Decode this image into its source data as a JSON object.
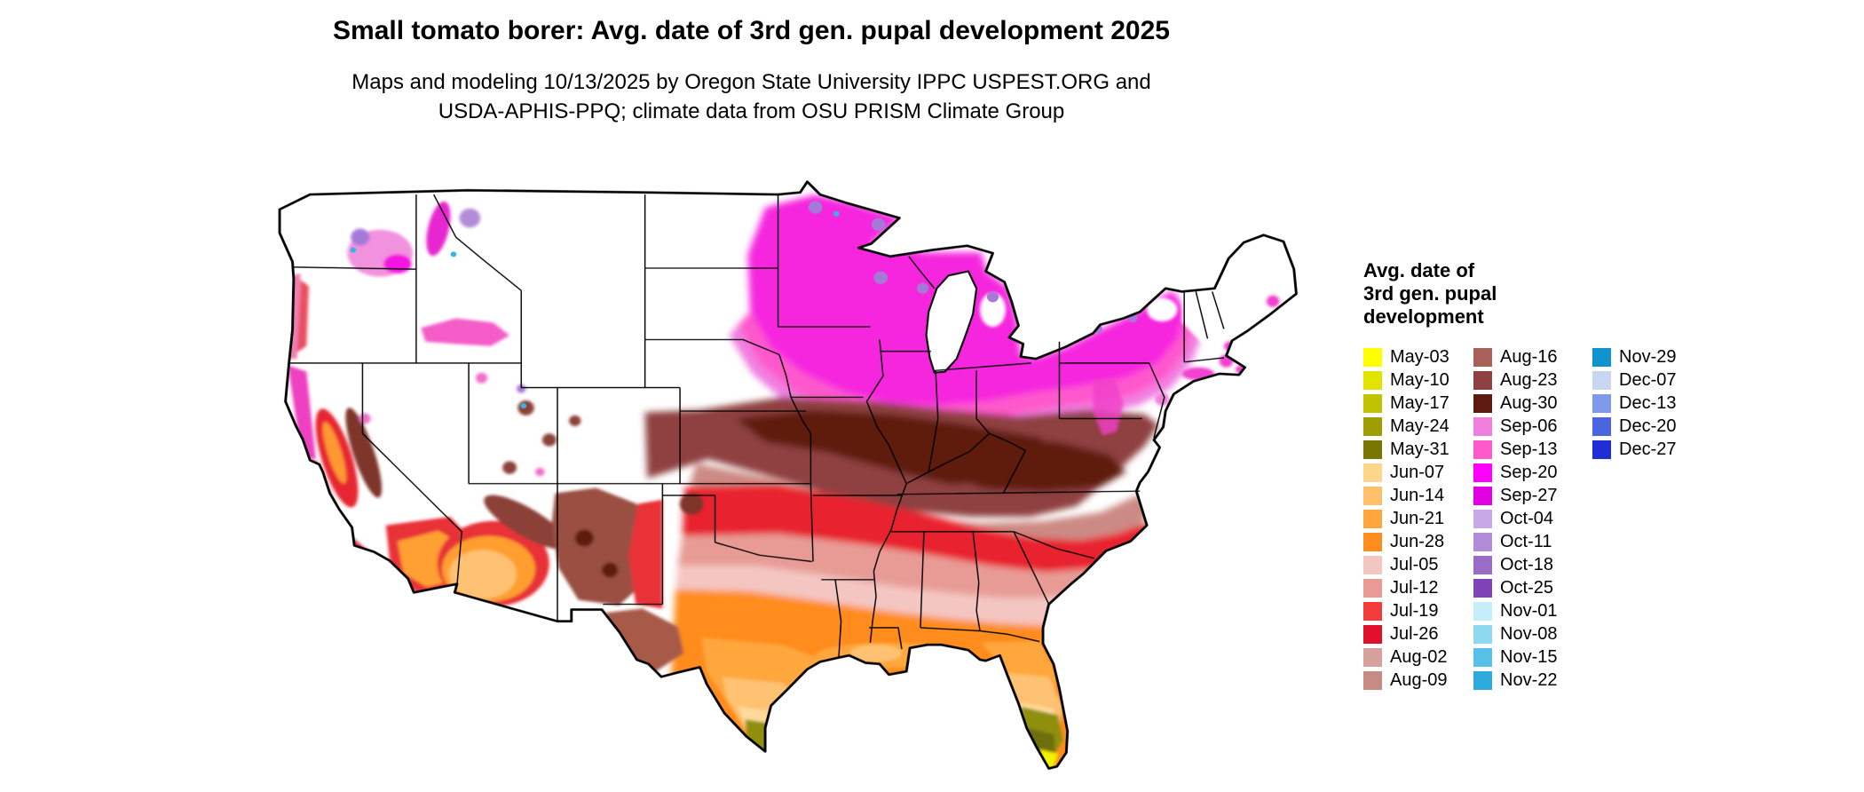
{
  "header": {
    "title": "Small tomato borer: Avg. date of 3rd gen. pupal development 2025",
    "subtitle_line1": "Maps and modeling 10/13/2025 by Oregon State University IPPC USPEST.ORG and",
    "subtitle_line2": "USDA-APHIS-PPQ; climate data from OSU PRISM Climate Group"
  },
  "map": {
    "region": "Contiguous United States",
    "type": "choropleth raster map with state boundaries"
  },
  "legend": {
    "title_lines": [
      "Avg. date of",
      "3rd gen. pupal",
      "development"
    ],
    "columns": [
      {
        "entries": [
          {
            "label": "May-03",
            "color": "#FFFF00"
          },
          {
            "label": "May-10",
            "color": "#E3E300"
          },
          {
            "label": "May-17",
            "color": "#C2C200"
          },
          {
            "label": "May-24",
            "color": "#9E9E00"
          },
          {
            "label": "May-31",
            "color": "#787800"
          },
          {
            "label": "Jun-07",
            "color": "#FFD58C"
          },
          {
            "label": "Jun-14",
            "color": "#FFC069"
          },
          {
            "label": "Jun-21",
            "color": "#FFA63E"
          },
          {
            "label": "Jun-28",
            "color": "#FF8C1E"
          },
          {
            "label": "Jul-05",
            "color": "#F4C6C2"
          },
          {
            "label": "Jul-12",
            "color": "#E89B95"
          },
          {
            "label": "Jul-19",
            "color": "#F23B3B"
          },
          {
            "label": "Jul-26",
            "color": "#E0102A"
          },
          {
            "label": "Aug-02",
            "color": "#D8A09A"
          },
          {
            "label": "Aug-09",
            "color": "#C88A84"
          }
        ]
      },
      {
        "entries": [
          {
            "label": "Aug-16",
            "color": "#A86058"
          },
          {
            "label": "Aug-23",
            "color": "#8F4040"
          },
          {
            "label": "Aug-30",
            "color": "#5E1A10"
          },
          {
            "label": "Sep-06",
            "color": "#F07FE0"
          },
          {
            "label": "Sep-13",
            "color": "#FF59CC"
          },
          {
            "label": "Sep-20",
            "color": "#FF00FF"
          },
          {
            "label": "Sep-27",
            "color": "#E100E1"
          },
          {
            "label": "Oct-04",
            "color": "#C9A8E8"
          },
          {
            "label": "Oct-11",
            "color": "#B28CD8"
          },
          {
            "label": "Oct-18",
            "color": "#9A6CC8"
          },
          {
            "label": "Oct-25",
            "color": "#7F42B8"
          },
          {
            "label": "Nov-01",
            "color": "#C6EEFA"
          },
          {
            "label": "Nov-08",
            "color": "#8ED8F2"
          },
          {
            "label": "Nov-15",
            "color": "#57C0E8"
          },
          {
            "label": "Nov-22",
            "color": "#2FAADE"
          }
        ]
      },
      {
        "entries": [
          {
            "label": "Nov-29",
            "color": "#0F93CE"
          },
          {
            "label": "Dec-07",
            "color": "#C9D6F2"
          },
          {
            "label": "Dec-13",
            "color": "#7E9AEA"
          },
          {
            "label": "Dec-20",
            "color": "#4A66DE"
          },
          {
            "label": "Dec-27",
            "color": "#1F2ED6"
          }
        ]
      }
    ]
  }
}
